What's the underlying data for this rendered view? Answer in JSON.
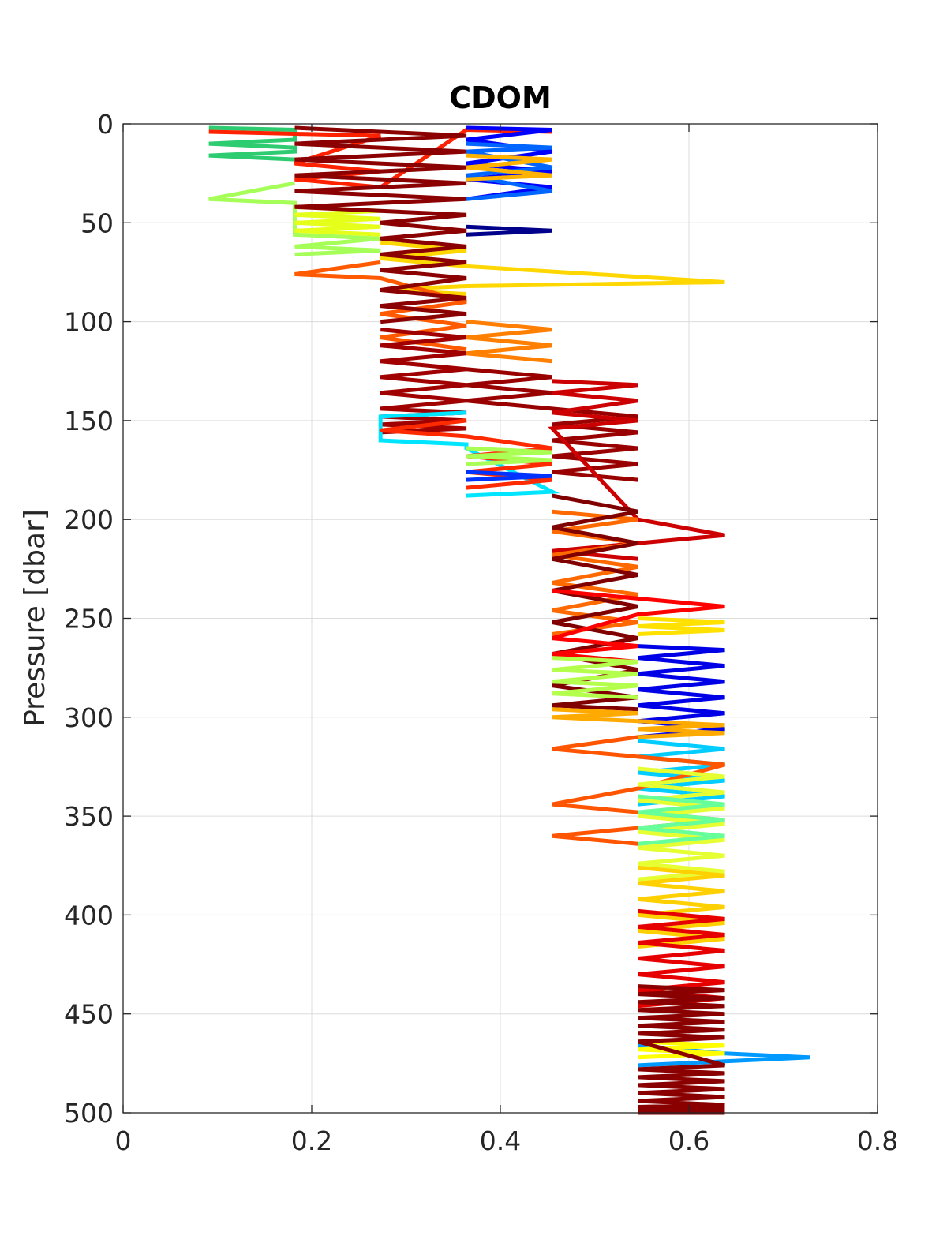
{
  "chart_data": {
    "type": "line",
    "title": "CDOM",
    "xlabel": "",
    "ylabel": "Pressure [dbar]",
    "xlim": [
      0,
      0.8
    ],
    "ylim": [
      0,
      500
    ],
    "y_reversed": true,
    "grid": true,
    "legend": "none",
    "x_ticks": [
      0,
      0.2,
      0.4,
      0.6,
      0.8
    ],
    "x_tick_labels": [
      "0",
      "0.2",
      "0.4",
      "0.6",
      "0.8"
    ],
    "y_ticks": [
      0,
      50,
      100,
      150,
      200,
      250,
      300,
      350,
      400,
      450,
      500
    ],
    "y_tick_labels": [
      "0",
      "50",
      "100",
      "150",
      "200",
      "250",
      "300",
      "350",
      "400",
      "450",
      "500"
    ],
    "colormap": "jet",
    "series": [
      {
        "color": "#2ecc71",
        "x": [
          0.091,
          0.182,
          0.182,
          0.091,
          0.182,
          0.182,
          0.091,
          0.182
        ],
        "y": [
          2,
          3,
          8,
          10,
          12,
          14,
          16,
          18
        ]
      },
      {
        "color": "#a6ff59",
        "x": [
          0.182,
          0.091,
          0.182,
          0.182,
          0.273,
          0.182,
          0.273,
          0.182
        ],
        "y": [
          30,
          38,
          40,
          56,
          58,
          62,
          64,
          66
        ]
      },
      {
        "color": "#e6ff1a",
        "x": [
          0.182,
          0.273,
          0.182,
          0.273,
          0.182,
          0.273,
          0.182,
          0.273
        ],
        "y": [
          42,
          44,
          46,
          48,
          50,
          52,
          54,
          56
        ]
      },
      {
        "color": "#ffd700",
        "x": [
          0.273,
          0.364,
          0.273,
          0.364,
          0.638,
          0.364,
          0.273,
          0.364
        ],
        "y": [
          60,
          64,
          68,
          72,
          80,
          82,
          84,
          86
        ]
      },
      {
        "color": "#ff5a00",
        "x": [
          0.273,
          0.182,
          0.273,
          0.364,
          0.273,
          0.364,
          0.273,
          0.364
        ],
        "y": [
          70,
          76,
          78,
          90,
          96,
          102,
          108,
          114
        ]
      },
      {
        "color": "#ff2200",
        "x": [
          0.091,
          0.182,
          0.273,
          0.182,
          0.273,
          0.182,
          0.273,
          0.364,
          0.455
        ],
        "y": [
          4,
          5,
          6,
          20,
          24,
          28,
          32,
          3,
          4
        ]
      },
      {
        "color": "#0000ff",
        "x": [
          0.364,
          0.455,
          0.364,
          0.455,
          0.364,
          0.455,
          0.364,
          0.455,
          0.364
        ],
        "y": [
          2,
          3,
          8,
          14,
          20,
          24,
          28,
          32,
          38
        ]
      },
      {
        "color": "#0066ff",
        "x": [
          0.364,
          0.455,
          0.364,
          0.455,
          0.364,
          0.455,
          0.364
        ],
        "y": [
          10,
          12,
          14,
          22,
          26,
          34,
          38
        ]
      },
      {
        "color": "#ffb300",
        "x": [
          0.364,
          0.455,
          0.364,
          0.455,
          0.364
        ],
        "y": [
          16,
          18,
          22,
          26,
          28
        ]
      },
      {
        "color": "#00008b",
        "x": [
          0.364,
          0.455,
          0.364
        ],
        "y": [
          52,
          54,
          56
        ]
      },
      {
        "color": "#8b0000",
        "x": [
          0.182,
          0.364,
          0.182,
          0.364,
          0.182,
          0.364,
          0.182,
          0.364,
          0.182,
          0.364,
          0.182,
          0.364,
          0.273,
          0.364,
          0.273,
          0.364,
          0.273,
          0.364,
          0.273,
          0.364,
          0.273,
          0.364,
          0.273,
          0.364,
          0.273
        ],
        "y": [
          2,
          6,
          10,
          14,
          18,
          22,
          26,
          30,
          34,
          38,
          42,
          46,
          50,
          54,
          58,
          62,
          66,
          70,
          74,
          78,
          84,
          88,
          92,
          96,
          100
        ]
      },
      {
        "color": "#a00000",
        "x": [
          0.273,
          0.364,
          0.273,
          0.364,
          0.273,
          0.364,
          0.273,
          0.364,
          0.273,
          0.364,
          0.273,
          0.364,
          0.273,
          0.364,
          0.273,
          0.364,
          0.273
        ],
        "y": [
          104,
          108,
          112,
          116,
          120,
          124,
          128,
          132,
          136,
          140,
          144,
          146,
          148,
          150,
          152,
          154,
          156
        ]
      },
      {
        "color": "#00e5ff",
        "x": [
          0.364,
          0.273,
          0.273,
          0.364,
          0.364,
          0.455,
          0.364
        ],
        "y": [
          146,
          148,
          160,
          162,
          164,
          186,
          188
        ]
      },
      {
        "color": "#ff2a00",
        "x": [
          0.364,
          0.273,
          0.364,
          0.455,
          0.364,
          0.455,
          0.364,
          0.455,
          0.364
        ],
        "y": [
          150,
          155,
          158,
          164,
          168,
          172,
          176,
          180,
          184
        ]
      },
      {
        "color": "#ff7f00",
        "x": [
          0.364,
          0.455,
          0.364,
          0.455,
          0.364,
          0.455
        ],
        "y": [
          100,
          104,
          108,
          112,
          116,
          120
        ]
      },
      {
        "color": "#990000",
        "x": [
          0.364,
          0.455,
          0.364,
          0.455,
          0.364,
          0.455,
          0.546,
          0.455,
          0.546,
          0.455,
          0.546,
          0.455,
          0.546,
          0.455,
          0.546
        ],
        "y": [
          124,
          128,
          132,
          136,
          140,
          144,
          148,
          152,
          156,
          160,
          164,
          168,
          172,
          176,
          180
        ]
      },
      {
        "color": "#cc0000",
        "x": [
          0.455,
          0.546,
          0.455,
          0.546,
          0.455,
          0.546,
          0.455,
          0.546,
          0.638,
          0.546,
          0.455,
          0.546
        ],
        "y": [
          130,
          132,
          136,
          140,
          146,
          150,
          154,
          200,
          208,
          212,
          216,
          220
        ]
      },
      {
        "color": "#aaff55",
        "x": [
          0.364,
          0.455,
          0.364,
          0.455,
          0.364
        ],
        "y": [
          164,
          166,
          168,
          170,
          172
        ]
      },
      {
        "color": "#0033ff",
        "x": [
          0.364,
          0.455,
          0.364
        ],
        "y": [
          176,
          178,
          180
        ]
      },
      {
        "color": "#ff6a00",
        "x": [
          0.455,
          0.546,
          0.455,
          0.546,
          0.455,
          0.546,
          0.455,
          0.546,
          0.455,
          0.546,
          0.455
        ],
        "y": [
          196,
          200,
          206,
          212,
          218,
          224,
          232,
          238,
          246,
          252,
          258
        ]
      },
      {
        "color": "#800000",
        "x": [
          0.455,
          0.546,
          0.455,
          0.546,
          0.455,
          0.546,
          0.455,
          0.546,
          0.455,
          0.546,
          0.455,
          0.546,
          0.455,
          0.546,
          0.455,
          0.546
        ],
        "y": [
          188,
          196,
          204,
          212,
          220,
          228,
          236,
          244,
          252,
          260,
          268,
          276,
          284,
          290,
          294,
          296
        ]
      },
      {
        "color": "#ff0000",
        "x": [
          0.455,
          0.546,
          0.638,
          0.546,
          0.455,
          0.546,
          0.455,
          0.546
        ],
        "y": [
          236,
          240,
          244,
          248,
          260,
          264,
          268,
          272
        ]
      },
      {
        "color": "#ffe100",
        "x": [
          0.546,
          0.638,
          0.546,
          0.638,
          0.546
        ],
        "y": [
          250,
          252,
          254,
          256,
          258
        ]
      },
      {
        "color": "#0000e6",
        "x": [
          0.546,
          0.638,
          0.546,
          0.638,
          0.546,
          0.638,
          0.546,
          0.638,
          0.546,
          0.638,
          0.546,
          0.638,
          0.546
        ],
        "y": [
          264,
          266,
          270,
          274,
          278,
          282,
          286,
          290,
          294,
          298,
          302,
          306,
          310
        ]
      },
      {
        "color": "#b4ff4b",
        "x": [
          0.455,
          0.546,
          0.455,
          0.546,
          0.455,
          0.546,
          0.455,
          0.546
        ],
        "y": [
          270,
          272,
          276,
          278,
          282,
          284,
          288,
          290
        ]
      },
      {
        "color": "#ffaa00",
        "x": [
          0.455,
          0.546,
          0.455,
          0.546,
          0.638,
          0.546,
          0.638,
          0.546
        ],
        "y": [
          296,
          298,
          300,
          302,
          304,
          306,
          308,
          310
        ]
      },
      {
        "color": "#00ccff",
        "x": [
          0.546,
          0.638,
          0.546,
          0.638,
          0.546,
          0.638,
          0.546,
          0.638,
          0.546
        ],
        "y": [
          312,
          316,
          320,
          324,
          328,
          332,
          336,
          340,
          344
        ]
      },
      {
        "color": "#ff5500",
        "x": [
          0.546,
          0.455,
          0.546,
          0.638,
          0.546,
          0.455,
          0.546,
          0.638,
          0.546,
          0.455,
          0.546
        ],
        "y": [
          310,
          316,
          320,
          324,
          336,
          344,
          348,
          352,
          356,
          360,
          364
        ]
      },
      {
        "color": "#e6ff33",
        "x": [
          0.546,
          0.638,
          0.546,
          0.638,
          0.546,
          0.638,
          0.546,
          0.638,
          0.546,
          0.638,
          0.546,
          0.638,
          0.546,
          0.638,
          0.546
        ],
        "y": [
          326,
          330,
          334,
          338,
          342,
          346,
          350,
          354,
          358,
          362,
          366,
          370,
          374,
          378,
          382
        ]
      },
      {
        "color": "#66ff99",
        "x": [
          0.546,
          0.638,
          0.546,
          0.638,
          0.546,
          0.638,
          0.546
        ],
        "y": [
          340,
          344,
          348,
          352,
          356,
          360,
          364
        ]
      },
      {
        "color": "#ffd000",
        "x": [
          0.546,
          0.638,
          0.546,
          0.638,
          0.546,
          0.638,
          0.546,
          0.638,
          0.546,
          0.638,
          0.546
        ],
        "y": [
          376,
          380,
          384,
          388,
          392,
          396,
          400,
          404,
          408,
          412,
          416
        ]
      },
      {
        "color": "#e60000",
        "x": [
          0.546,
          0.638,
          0.546,
          0.638,
          0.546,
          0.638,
          0.546,
          0.638,
          0.546,
          0.638,
          0.546,
          0.638,
          0.546
        ],
        "y": [
          398,
          402,
          406,
          410,
          414,
          418,
          422,
          426,
          430,
          434,
          438,
          442,
          446
        ]
      },
      {
        "color": "#0099ff",
        "x": [
          0.546,
          0.638,
          0.728,
          0.638,
          0.546
        ],
        "y": [
          466,
          470,
          472,
          474,
          476
        ]
      },
      {
        "color": "#ffff00",
        "x": [
          0.546,
          0.638,
          0.546,
          0.638,
          0.546
        ],
        "y": [
          464,
          466,
          468,
          470,
          472
        ]
      },
      {
        "color": "#8a0000",
        "x": [
          0.546,
          0.638,
          0.546,
          0.638,
          0.546,
          0.638,
          0.546,
          0.638,
          0.546,
          0.638,
          0.546,
          0.638,
          0.546,
          0.638,
          0.546,
          0.638,
          0.546,
          0.638,
          0.546,
          0.638,
          0.546,
          0.638,
          0.546,
          0.638,
          0.546,
          0.638,
          0.546,
          0.638,
          0.546,
          0.638,
          0.546,
          0.638,
          0.546
        ],
        "y": [
          436,
          438,
          440,
          442,
          444,
          446,
          448,
          450,
          452,
          454,
          456,
          458,
          460,
          462,
          464,
          476,
          478,
          480,
          482,
          484,
          486,
          488,
          490,
          492,
          494,
          496,
          497,
          498,
          499,
          500,
          500,
          500,
          500
        ]
      }
    ]
  }
}
